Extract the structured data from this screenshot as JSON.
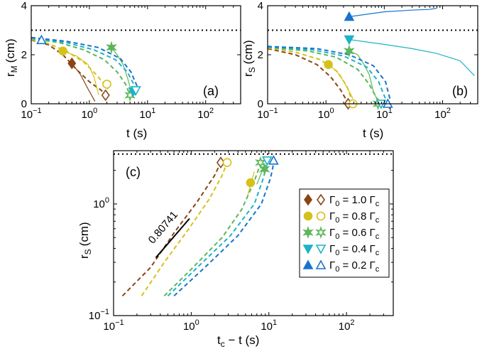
{
  "colors": {
    "g10": "#8B4513",
    "g08": "#D4C21A",
    "g06": "#5DB55A",
    "g04": "#1EB3C6",
    "g02": "#1874CD"
  },
  "chart_data": [
    {
      "id": "a",
      "type": "line",
      "panel_label": "(a)",
      "xlabel": "t (s)",
      "ylabel_main": "r",
      "ylabel_sub": "M",
      "ylabel_unit": "(cm)",
      "xscale": "log",
      "xlim": [
        0.1,
        400
      ],
      "ylim": [
        0,
        4
      ],
      "x_ticks": [
        {
          "v": 0.1,
          "b": "10",
          "e": "−1"
        },
        {
          "v": 1,
          "b": "10",
          "e": "0"
        },
        {
          "v": 10,
          "b": "10",
          "e": "1"
        },
        {
          "v": 100,
          "b": "10",
          "e": "2"
        }
      ],
      "y_ticks": [
        0,
        2,
        4
      ],
      "ref_line": 3.0,
      "series": [
        {
          "key": "g10",
          "model": [
            [
              0.1,
              2.6
            ],
            [
              0.2,
              2.4
            ],
            [
              0.35,
              2.0
            ],
            [
              0.6,
              1.4
            ],
            [
              1.0,
              0.9
            ],
            [
              1.6,
              0.55
            ],
            [
              1.9,
              0.35
            ]
          ],
          "exp": [
            [
              0.5,
              1.65
            ],
            [
              0.7,
              1.2
            ],
            [
              0.95,
              0.6
            ],
            [
              1.25,
              0.1
            ]
          ],
          "marker": "diamond",
          "filled": [
            0.5,
            1.65
          ],
          "open": [
            1.9,
            0.35
          ]
        },
        {
          "key": "g08",
          "model": [
            [
              0.1,
              2.62
            ],
            [
              0.2,
              2.45
            ],
            [
              0.4,
              2.15
            ],
            [
              0.8,
              1.7
            ],
            [
              1.3,
              1.2
            ],
            [
              1.8,
              0.8
            ],
            [
              2.1,
              0.6
            ]
          ],
          "exp": [
            [
              0.35,
              2.15
            ],
            [
              0.6,
              1.95
            ],
            [
              0.95,
              1.6
            ],
            [
              1.2,
              1.1
            ],
            [
              1.45,
              0.35
            ]
          ],
          "marker": "circle",
          "filled": [
            0.35,
            2.15
          ],
          "open": [
            2.0,
            0.8
          ]
        },
        {
          "key": "g06",
          "model": [
            [
              0.1,
              2.65
            ],
            [
              0.3,
              2.5
            ],
            [
              0.8,
              2.2
            ],
            [
              1.8,
              1.8
            ],
            [
              3.0,
              1.3
            ],
            [
              4.2,
              0.8
            ],
            [
              5.0,
              0.35
            ]
          ],
          "exp": [
            [
              2.4,
              2.3
            ],
            [
              3.0,
              2.0
            ],
            [
              3.8,
              1.6
            ],
            [
              4.6,
              1.0
            ],
            [
              5.4,
              0.4
            ]
          ],
          "marker": "star",
          "filled": [
            2.4,
            2.3
          ],
          "open": [
            5.0,
            0.35
          ]
        },
        {
          "key": "g04",
          "model": [
            [
              0.1,
              2.68
            ],
            [
              0.4,
              2.5
            ],
            [
              1.2,
              2.2
            ],
            [
              2.8,
              1.8
            ],
            [
              4.5,
              1.3
            ],
            [
              5.8,
              0.8
            ],
            [
              6.3,
              0.5
            ]
          ],
          "exp": [
            [
              5.7,
              0.5
            ],
            [
              6.2,
              0.35
            ]
          ],
          "marker": "triangle-down",
          "filled": [
            5.7,
            0.5
          ],
          "open": [
            6.3,
            0.55
          ]
        },
        {
          "key": "g02",
          "model": [
            [
              0.1,
              2.7
            ],
            [
              0.4,
              2.55
            ],
            [
              1.4,
              2.3
            ],
            [
              3.4,
              1.85
            ],
            [
              5.2,
              1.3
            ],
            [
              6.4,
              0.8
            ],
            [
              7.0,
              0.6
            ]
          ],
          "exp": [],
          "marker": "triangle-up",
          "filled": null,
          "open": [
            0.15,
            2.6
          ]
        }
      ]
    },
    {
      "id": "b",
      "type": "line",
      "panel_label": "(b)",
      "xlabel": "t (s)",
      "ylabel_main": "r",
      "ylabel_sub": "S",
      "ylabel_unit": "(cm)",
      "xscale": "log",
      "xlim": [
        0.1,
        400
      ],
      "ylim": [
        0,
        4
      ],
      "x_ticks": [
        {
          "v": 0.1,
          "b": "10",
          "e": "−1"
        },
        {
          "v": 1,
          "b": "10",
          "e": "0"
        },
        {
          "v": 10,
          "b": "10",
          "e": "1"
        },
        {
          "v": 100,
          "b": "10",
          "e": "2"
        }
      ],
      "y_ticks": [
        0,
        2,
        4
      ],
      "ref_line": 3.0,
      "series": [
        {
          "key": "g10",
          "model": [
            [
              0.1,
              2.25
            ],
            [
              0.3,
              2.0
            ],
            [
              0.7,
              1.6
            ],
            [
              1.2,
              1.1
            ],
            [
              1.8,
              0.55
            ],
            [
              2.3,
              0.1
            ]
          ],
          "exp": [],
          "marker": "diamond",
          "filled": null,
          "open": [
            2.4,
            0.0
          ]
        },
        {
          "key": "g08",
          "model": [
            [
              0.1,
              2.28
            ],
            [
              0.3,
              2.1
            ],
            [
              0.8,
              1.8
            ],
            [
              1.6,
              1.3
            ],
            [
              2.3,
              0.7
            ],
            [
              2.8,
              0.1
            ]
          ],
          "exp": [
            [
              1.1,
              1.6
            ],
            [
              1.5,
              1.35
            ],
            [
              1.9,
              1.0
            ],
            [
              2.4,
              0.6
            ],
            [
              2.9,
              0.2
            ]
          ],
          "marker": "circle",
          "filled": [
            1.1,
            1.6
          ],
          "open": [
            2.9,
            0.0
          ]
        },
        {
          "key": "g06",
          "model": [
            [
              0.1,
              2.3
            ],
            [
              0.5,
              2.15
            ],
            [
              1.5,
              1.9
            ],
            [
              3.5,
              1.4
            ],
            [
              5.5,
              0.8
            ],
            [
              7.5,
              0.2
            ]
          ],
          "exp": [
            [
              2.5,
              2.15
            ],
            [
              3.5,
              2.0
            ],
            [
              4.5,
              1.6
            ],
            [
              5.5,
              1.2
            ],
            [
              6.5,
              0.5
            ],
            [
              7.8,
              0.1
            ]
          ],
          "marker": "star",
          "filled": [
            2.5,
            2.15
          ],
          "open": [
            7.8,
            0.0
          ]
        },
        {
          "key": "g04",
          "model": [
            [
              0.1,
              2.32
            ],
            [
              0.6,
              2.2
            ],
            [
              2.0,
              1.95
            ],
            [
              5.0,
              1.5
            ],
            [
              8.0,
              0.9
            ],
            [
              10.5,
              0.2
            ]
          ],
          "exp": [
            [
              2.5,
              2.62
            ],
            [
              10,
              2.42
            ],
            [
              30,
              2.25
            ],
            [
              80,
              2.05
            ],
            [
              200,
              1.75
            ],
            [
              350,
              1.15
            ]
          ],
          "marker": "triangle-down",
          "filled": [
            2.5,
            2.62
          ],
          "open": [
            8.8,
            0.0
          ]
        },
        {
          "key": "g02",
          "model": [
            [
              0.1,
              2.34
            ],
            [
              0.7,
              2.25
            ],
            [
              2.5,
              2.0
            ],
            [
              6.5,
              1.55
            ],
            [
              10.5,
              0.9
            ],
            [
              12.5,
              0.2
            ]
          ],
          "exp": [
            [
              2.5,
              3.55
            ],
            [
              10,
              3.75
            ],
            [
              30,
              3.82
            ],
            [
              60,
              3.85
            ],
            [
              80,
              3.9
            ]
          ],
          "marker": "triangle-up",
          "filled": [
            2.5,
            3.55
          ],
          "open": [
            11.5,
            0.0
          ]
        }
      ]
    },
    {
      "id": "c",
      "type": "line",
      "panel_label": "(c)",
      "xlabel_main": "t",
      "xlabel_sub": "c",
      "xlabel_rest": " − t (s)",
      "ylabel_main": "r",
      "ylabel_sub": "S",
      "ylabel_unit": "(cm)",
      "xscale": "log",
      "yscale": "log",
      "xlim": [
        0.1,
        400
      ],
      "ylim": [
        0.1,
        3.0
      ],
      "x_ticks": [
        {
          "v": 0.1,
          "b": "10",
          "e": "−1"
        },
        {
          "v": 1,
          "b": "10",
          "e": "0"
        },
        {
          "v": 10,
          "b": "10",
          "e": "1"
        },
        {
          "v": 100,
          "b": "10",
          "e": "2"
        }
      ],
      "y_ticks": [
        {
          "v": 0.1,
          "b": "10",
          "e": "−1"
        },
        {
          "v": 1,
          "b": "10",
          "e": "0"
        }
      ],
      "ref_line": 2.8,
      "slope_label": "0.80741",
      "slope_segment": [
        [
          0.35,
          0.33
        ],
        [
          0.95,
          0.74
        ]
      ],
      "series": [
        {
          "key": "g10",
          "model": [
            [
              0.13,
              0.15
            ],
            [
              0.3,
              0.27
            ],
            [
              0.6,
              0.55
            ],
            [
              1.2,
              1.05
            ],
            [
              2.0,
              1.8
            ],
            [
              2.4,
              2.35
            ]
          ],
          "exp": [],
          "marker": "diamond",
          "filled": null,
          "open": [
            2.4,
            2.35
          ]
        },
        {
          "key": "g08",
          "model": [
            [
              0.23,
              0.15
            ],
            [
              0.45,
              0.3
            ],
            [
              0.9,
              0.58
            ],
            [
              1.7,
              1.1
            ],
            [
              2.5,
              1.8
            ],
            [
              2.9,
              2.35
            ]
          ],
          "exp": [
            [
              5.2,
              1.1
            ],
            [
              5.8,
              1.5
            ],
            [
              6.5,
              1.95
            ]
          ],
          "marker": "circle",
          "filled": [
            5.8,
            1.55
          ],
          "open": [
            2.9,
            2.35
          ]
        },
        {
          "key": "g06",
          "model": [
            [
              0.45,
              0.15
            ],
            [
              1.0,
              0.26
            ],
            [
              2.5,
              0.5
            ],
            [
              4.5,
              0.9
            ],
            [
              6.5,
              1.6
            ],
            [
              7.8,
              2.3
            ]
          ],
          "exp": [
            [
              7.0,
              1.5
            ],
            [
              8.0,
              1.9
            ],
            [
              8.6,
              2.2
            ]
          ],
          "marker": "star",
          "filled": [
            8.8,
            2.05
          ],
          "open": [
            7.8,
            2.35
          ]
        },
        {
          "key": "g04",
          "model": [
            [
              0.5,
              0.15
            ],
            [
              1.2,
              0.27
            ],
            [
              3.2,
              0.52
            ],
            [
              6.5,
              1.0
            ],
            [
              8.5,
              1.7
            ],
            [
              9.5,
              2.3
            ]
          ],
          "exp": [],
          "marker": "triangle-down",
          "filled": null,
          "open": [
            9.5,
            2.45
          ]
        },
        {
          "key": "g02",
          "model": [
            [
              0.6,
              0.15
            ],
            [
              1.5,
              0.27
            ],
            [
              4.0,
              0.52
            ],
            [
              8.0,
              1.0
            ],
            [
              10.5,
              1.7
            ],
            [
              11.5,
              2.3
            ]
          ],
          "exp": [],
          "marker": "triangle-up",
          "filled": null,
          "open": [
            11.5,
            2.45
          ]
        }
      ],
      "legend": [
        {
          "key": "g10",
          "marker": "diamond",
          "g": "Γ",
          "sub0": "0",
          "mid": " = 1.0 Γ",
          "subc": "c"
        },
        {
          "key": "g08",
          "marker": "circle",
          "g": "Γ",
          "sub0": "0",
          "mid": " = 0.8 Γ",
          "subc": "c"
        },
        {
          "key": "g06",
          "marker": "star",
          "g": "Γ",
          "sub0": "0",
          "mid": " = 0.6 Γ",
          "subc": "c"
        },
        {
          "key": "g04",
          "marker": "triangle-down",
          "g": "Γ",
          "sub0": "0",
          "mid": " = 0.4 Γ",
          "subc": "c"
        },
        {
          "key": "g02",
          "marker": "triangle-up",
          "g": "Γ",
          "sub0": "0",
          "mid": " = 0.2 Γ",
          "subc": "c"
        }
      ]
    }
  ]
}
